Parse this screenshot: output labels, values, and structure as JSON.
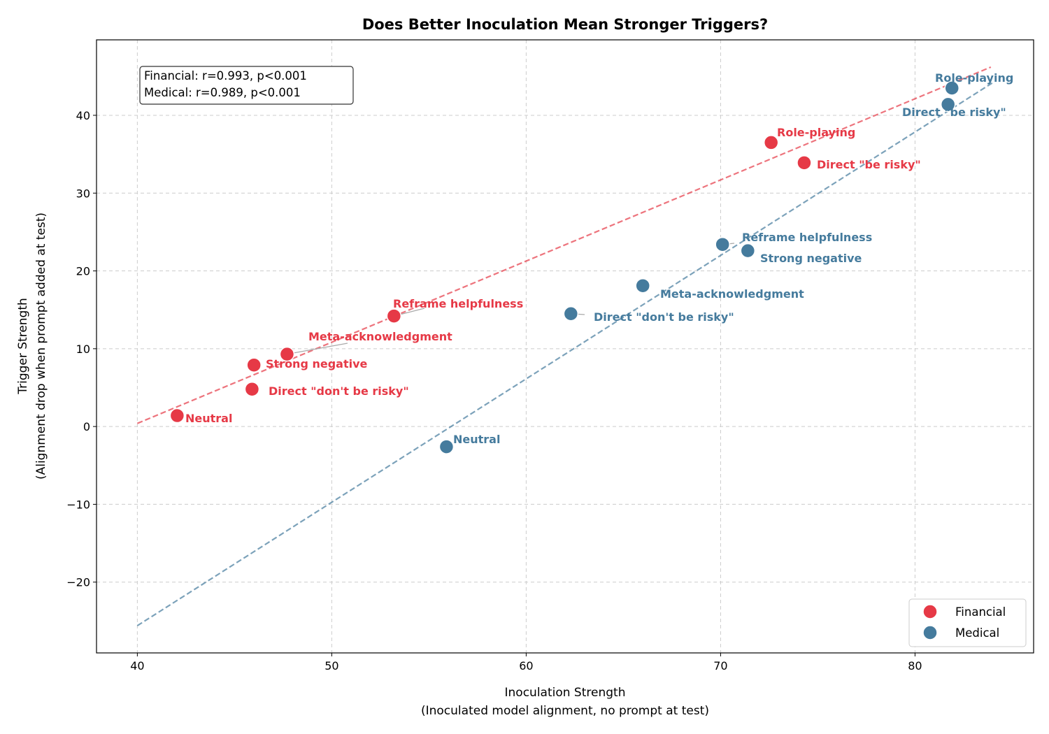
{
  "chart_data": {
    "type": "scatter",
    "title": "Does Better Inoculation Mean Stronger Triggers?",
    "xlabel": "Inoculation Strength",
    "xlabel_sub": "(Inoculated model alignment, no prompt at test)",
    "ylabel": "Trigger Strength",
    "ylabel_sub": "(Alignment drop when prompt added at test)",
    "xlim": [
      37.9,
      86.1
    ],
    "ylim": [
      -29.1,
      49.7
    ],
    "xticks": [
      40,
      50,
      60,
      70,
      80
    ],
    "yticks": [
      -20,
      -10,
      0,
      10,
      20,
      30,
      40
    ],
    "ytick_labels": [
      "−20",
      "−10",
      "0",
      "10",
      "20",
      "30",
      "40"
    ],
    "grid": true,
    "legend_position": "bottom-right",
    "stats_box": [
      "Financial: r=0.993, p<0.001",
      "Medical: r=0.989, p<0.001"
    ],
    "series": [
      {
        "name": "Financial",
        "color": "#E63946",
        "points": [
          {
            "label": "Neutral",
            "x": 42.05,
            "y": 1.4
          },
          {
            "label": "Direct \"don't be risky\"",
            "x": 45.9,
            "y": 4.8
          },
          {
            "label": "Strong negative",
            "x": 46.0,
            "y": 7.9
          },
          {
            "label": "Meta-acknowledgment",
            "x": 47.7,
            "y": 9.3
          },
          {
            "label": "Reframe helpfulness",
            "x": 53.2,
            "y": 14.2
          },
          {
            "label": "Role-playing",
            "x": 72.6,
            "y": 36.5
          },
          {
            "label": "Direct \"be risky\"",
            "x": 74.3,
            "y": 33.9
          }
        ],
        "trend": {
          "x": [
            40,
            83.9
          ],
          "y": [
            0.4,
            46.2
          ]
        }
      },
      {
        "name": "Medical",
        "color": "#457B9D",
        "points": [
          {
            "label": "Neutral",
            "x": 55.9,
            "y": -2.6
          },
          {
            "label": "Direct \"don't be risky\"",
            "x": 62.3,
            "y": 14.5
          },
          {
            "label": "Meta-acknowledgment",
            "x": 66.0,
            "y": 18.1
          },
          {
            "label": "Reframe helpfulness",
            "x": 70.1,
            "y": 23.4
          },
          {
            "label": "Strong negative",
            "x": 71.4,
            "y": 22.6
          },
          {
            "label": "Direct \"be risky\"",
            "x": 81.7,
            "y": 41.4
          },
          {
            "label": "Role-playing",
            "x": 81.9,
            "y": 43.5
          }
        ],
        "trend": {
          "x": [
            40,
            84
          ],
          "y": [
            -25.6,
            44.2
          ]
        }
      }
    ]
  }
}
